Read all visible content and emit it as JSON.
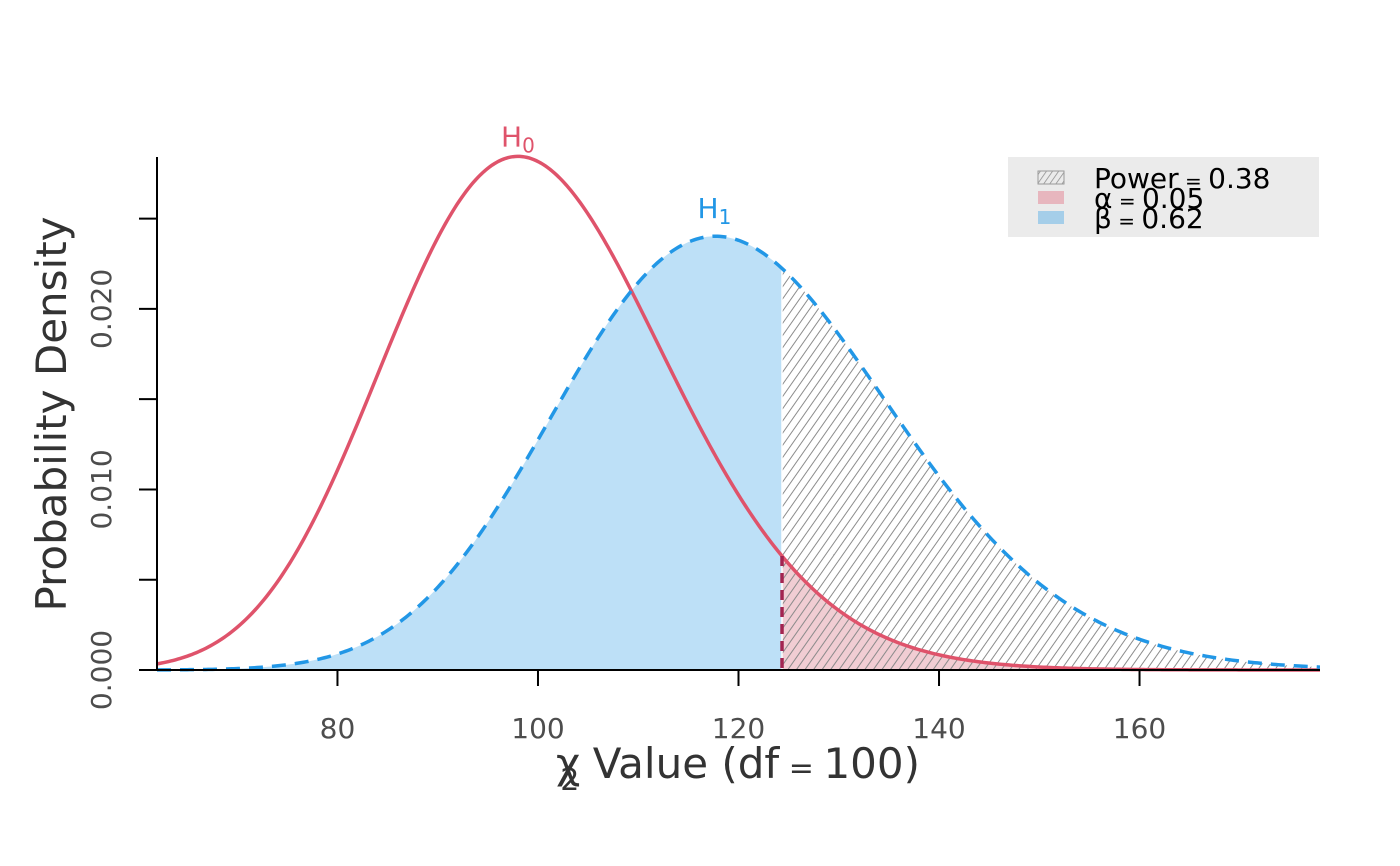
{
  "chart_data": {
    "type": "area",
    "xlabel_parts": [
      "χ",
      "2",
      " Value (df",
      " = ",
      "100)"
    ],
    "ylabel": "Probability Density",
    "xlim": [
      62,
      178
    ],
    "ylim": [
      0,
      0.0288
    ],
    "x_ticks": [
      80,
      100,
      120,
      140,
      160
    ],
    "x_tick_labels": [
      "80",
      "100",
      "120",
      "140",
      "160"
    ],
    "y_ticks": [
      0,
      0.005,
      0.01,
      0.015,
      0.02,
      0.025
    ],
    "y_tick_labels": [
      "0.000",
      "",
      "0.010",
      "",
      "0.020",
      ""
    ],
    "critical_value": 124.34,
    "series": [
      {
        "name": "H0",
        "label_main": "H",
        "label_sub": "0",
        "distribution": "chi-square",
        "df": 100,
        "ncp": 0,
        "mode_x": 98,
        "mode_y": 0.0286,
        "line_style": "solid",
        "color": "#DF536B"
      },
      {
        "name": "H1",
        "label_main": "H",
        "label_sub": "1",
        "distribution": "noncentral chi-square",
        "df": 100,
        "ncp": 20,
        "mode_x": 117.6,
        "mode_y": 0.024,
        "line_style": "dashed",
        "color": "#2297E6"
      }
    ],
    "legend": {
      "position": "top-right",
      "background": "#EBEBEB",
      "entries": [
        {
          "symbol": "Power",
          "op": " = ",
          "value": "0.38",
          "fill": "hatch"
        },
        {
          "symbol": "α",
          "op": " = ",
          "value": "0.05",
          "fill": "#DF536B"
        },
        {
          "symbol": "β",
          "op": " = ",
          "value": "0.62",
          "fill": "#2297E6"
        }
      ]
    },
    "areas": {
      "beta_fill": "#BDE0F7",
      "alpha_fill": "#EEC4CB",
      "hatch_color": "#8C8C8C"
    }
  }
}
